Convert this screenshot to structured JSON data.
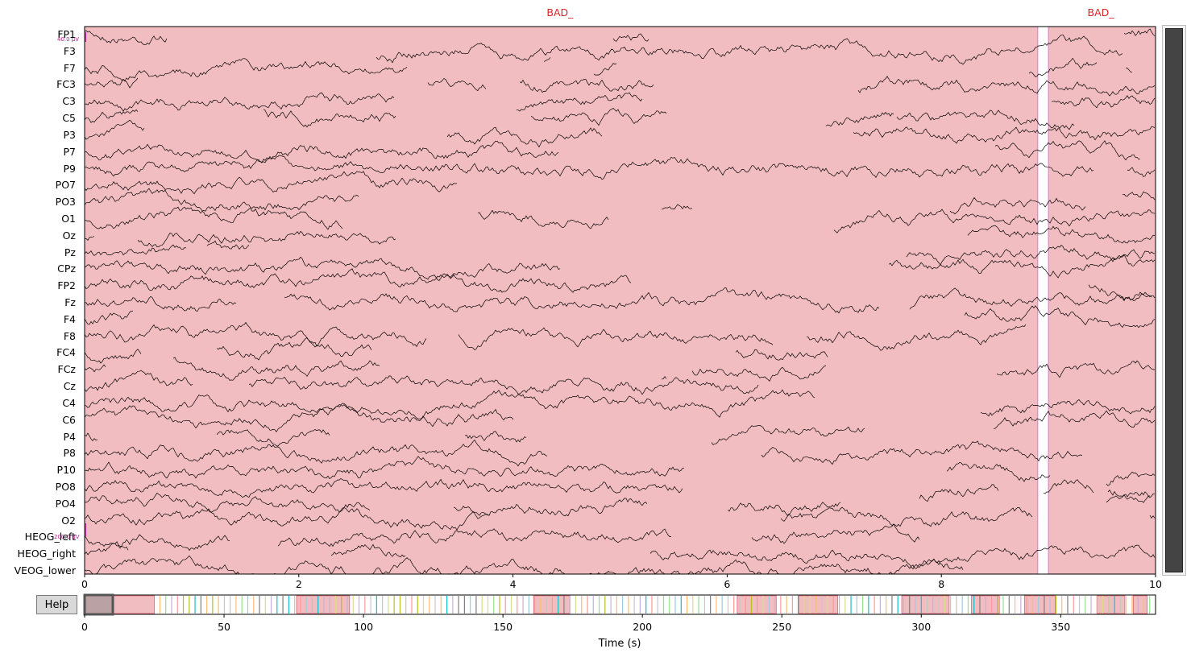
{
  "annotation_labels": [
    "BAD_",
    "BAD_"
  ],
  "channels": [
    "FP1",
    "F3",
    "F7",
    "FC3",
    "C3",
    "C5",
    "P3",
    "P7",
    "P9",
    "PO7",
    "PO3",
    "O1",
    "Oz",
    "Pz",
    "CPz",
    "FP2",
    "Fz",
    "F4",
    "F8",
    "FC4",
    "FCz",
    "Cz",
    "C4",
    "C6",
    "P4",
    "P8",
    "P10",
    "PO8",
    "PO4",
    "O2",
    "HEOG_left",
    "HEOG_right",
    "VEOG_lower"
  ],
  "scale_top": "40.0 µV",
  "scale_bottom": "200.0 µV",
  "time_ticks": [
    "0",
    "2",
    "4",
    "6",
    "8",
    "10"
  ],
  "overview_ticks": [
    "0",
    "50",
    "100",
    "150",
    "200",
    "250",
    "300",
    "350"
  ],
  "xlabel": "Time (s)",
  "help_label": "Help",
  "colors": {
    "bad_fill": "#f2bdc1",
    "bad_edge": "#e377c2",
    "trace": "#000000",
    "annotation_text": "#d62728"
  },
  "main_view": {
    "time_range_s": [
      0,
      10
    ],
    "bad_spans_s": [
      [
        0,
        8.9
      ],
      [
        9.0,
        10
      ]
    ]
  },
  "overview_view": {
    "time_range_s": [
      0,
      384
    ],
    "window_s": [
      0,
      10
    ]
  }
}
